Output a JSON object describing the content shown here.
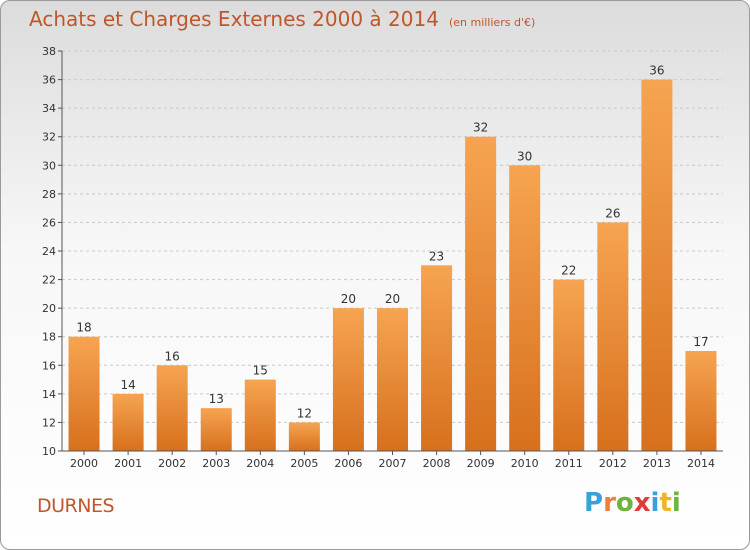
{
  "chart_data": {
    "type": "bar",
    "title": "Achats et Charges Externes 2000 à 2014",
    "subtitle": "(en milliers d'€)",
    "categories": [
      "2000",
      "2001",
      "2002",
      "2003",
      "2004",
      "2005",
      "2006",
      "2007",
      "2008",
      "2009",
      "2010",
      "2011",
      "2012",
      "2013",
      "2014"
    ],
    "values": [
      18,
      14,
      16,
      13,
      15,
      12,
      20,
      20,
      23,
      32,
      30,
      22,
      26,
      36,
      17
    ],
    "ylim": [
      10,
      38
    ],
    "yticks": [
      10,
      12,
      14,
      16,
      18,
      20,
      22,
      24,
      26,
      28,
      30,
      32,
      34,
      36,
      38
    ],
    "grid": true,
    "legend": "none",
    "bar_color": "#f0953a",
    "xlabel": "",
    "ylabel": ""
  },
  "commune": "DURNES",
  "logo": {
    "text": "Proxiti",
    "letter_colors": [
      "#3aa0d8",
      "#e8823a",
      "#6cb33f",
      "#e03a3a",
      "#3aa0d8",
      "#f0b429",
      "#6cb33f"
    ]
  }
}
